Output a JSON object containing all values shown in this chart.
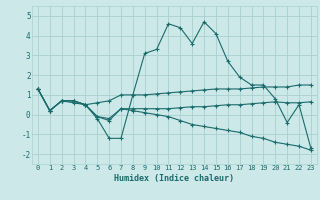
{
  "xlabel": "Humidex (Indice chaleur)",
  "bg_color": "#cce8e8",
  "grid_color": "#aad0d0",
  "line_color": "#1a6b6b",
  "xlim": [
    -0.5,
    23.5
  ],
  "ylim": [
    -2.5,
    5.5
  ],
  "xticks": [
    0,
    1,
    2,
    3,
    4,
    5,
    6,
    7,
    8,
    9,
    10,
    11,
    12,
    13,
    14,
    15,
    16,
    17,
    18,
    19,
    20,
    21,
    22,
    23
  ],
  "yticks": [
    -2,
    -1,
    0,
    1,
    2,
    3,
    4,
    5
  ],
  "lines": [
    {
      "x": [
        0,
        1,
        2,
        3,
        4,
        5,
        6,
        7,
        8,
        9,
        10,
        11,
        12,
        13,
        14,
        15,
        16,
        17,
        18,
        19,
        20,
        21,
        22,
        23
      ],
      "y": [
        1.3,
        0.2,
        0.7,
        0.7,
        0.5,
        -0.2,
        -1.2,
        -1.2,
        1.0,
        3.1,
        3.3,
        4.6,
        4.4,
        3.6,
        4.7,
        4.1,
        2.7,
        1.9,
        1.5,
        1.5,
        0.8,
        -0.4,
        0.5,
        -1.7
      ]
    },
    {
      "x": [
        0,
        1,
        2,
        3,
        4,
        5,
        6,
        7,
        8,
        9,
        10,
        11,
        12,
        13,
        14,
        15,
        16,
        17,
        18,
        19,
        20,
        21,
        22,
        23
      ],
      "y": [
        1.3,
        0.2,
        0.7,
        0.7,
        0.5,
        0.6,
        0.7,
        1.0,
        1.0,
        1.0,
        1.05,
        1.1,
        1.15,
        1.2,
        1.25,
        1.3,
        1.3,
        1.3,
        1.35,
        1.4,
        1.4,
        1.4,
        1.5,
        1.5
      ]
    },
    {
      "x": [
        0,
        1,
        2,
        3,
        4,
        5,
        6,
        7,
        8,
        9,
        10,
        11,
        12,
        13,
        14,
        15,
        16,
        17,
        18,
        19,
        20,
        21,
        22,
        23
      ],
      "y": [
        1.3,
        0.2,
        0.7,
        0.6,
        0.5,
        -0.1,
        -0.3,
        0.3,
        0.2,
        0.1,
        0.0,
        -0.1,
        -0.3,
        -0.5,
        -0.6,
        -0.7,
        -0.8,
        -0.9,
        -1.1,
        -1.2,
        -1.4,
        -1.5,
        -1.6,
        -1.8
      ]
    },
    {
      "x": [
        0,
        1,
        2,
        3,
        4,
        5,
        6,
        7,
        8,
        9,
        10,
        11,
        12,
        13,
        14,
        15,
        16,
        17,
        18,
        19,
        20,
        21,
        22,
        23
      ],
      "y": [
        1.3,
        0.2,
        0.7,
        0.7,
        0.5,
        -0.1,
        -0.2,
        0.3,
        0.3,
        0.3,
        0.3,
        0.3,
        0.35,
        0.4,
        0.4,
        0.45,
        0.5,
        0.5,
        0.55,
        0.6,
        0.65,
        0.6,
        0.6,
        0.65
      ]
    }
  ]
}
